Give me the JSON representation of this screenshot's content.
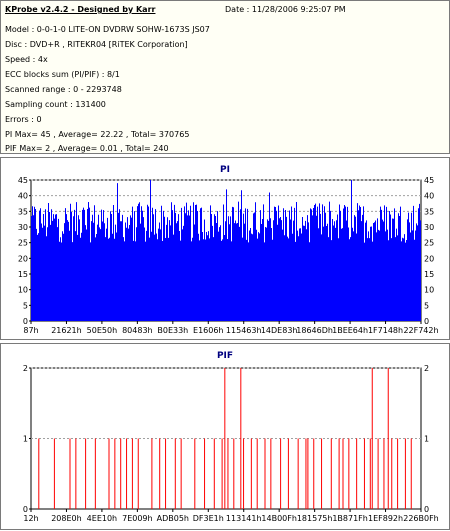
{
  "info": {
    "title": "KProbe v2.4.2 - Designed by Karr",
    "date": "Date : 11/28/2006 9:25:07 PM",
    "lines": [
      "Model : 0-0-1-0 LITE-ON DVDRW SOHW-1673S JS07",
      "Disc : DVD+R , RITEKR04 [RiTEK Corporation]",
      "Speed : 4x",
      "ECC blocks sum (PI/PIF) : 8/1",
      "Scanned range : 0 - 2293748",
      "Sampling count : 131400",
      "Errors : 0",
      "PI Max= 45 , Average= 22.22 , Total= 370765",
      "PIF Max= 2 , Average= 0.01 , Total= 240"
    ]
  },
  "colors": {
    "pi_bar": "#0000ff",
    "pif_bar": "#ff0000",
    "title_text": "#000080",
    "grid": "#a0a0a0"
  },
  "chart_data": [
    {
      "type": "bar",
      "title": "PI",
      "ylim": [
        0,
        45
      ],
      "yticks": [
        0,
        5,
        10,
        15,
        20,
        25,
        30,
        35,
        40,
        45
      ],
      "dashed_gridlines": [
        35,
        40,
        45
      ],
      "xtick_labels": [
        "87h",
        "21621h",
        "50E50h",
        "80483h",
        "B0E33h",
        "E1606h",
        "115463h",
        "14DE83h",
        "18646Dh",
        "1BEE64h",
        "1F7148h",
        "22F742h"
      ],
      "max": 45,
      "average": 22.22,
      "typical_range": [
        25,
        38
      ],
      "spikes": [
        {
          "x_fraction": 0.22,
          "value": 44
        },
        {
          "x_fraction": 0.305,
          "value": 45
        },
        {
          "x_fraction": 0.5,
          "value": 42
        },
        {
          "x_fraction": 0.61,
          "value": 41
        },
        {
          "x_fraction": 0.82,
          "value": 45
        }
      ]
    },
    {
      "type": "bar",
      "title": "PIF",
      "ylim": [
        0,
        2
      ],
      "yticks": [
        0,
        1,
        2
      ],
      "dashed_gridlines": [
        1,
        2
      ],
      "xtick_labels": [
        "12h",
        "208E0h",
        "4EE10h",
        "7E009h",
        "ADB05h",
        "DF3E1h",
        "113141h",
        "14B00Fh",
        "181575h",
        "1B871Fh",
        "1EF892h",
        "226B0Fh"
      ],
      "max": 2,
      "average": 0.01,
      "ones_x_fraction": [
        0.02,
        0.06,
        0.1,
        0.115,
        0.14,
        0.165,
        0.2,
        0.215,
        0.23,
        0.245,
        0.26,
        0.275,
        0.31,
        0.33,
        0.345,
        0.37,
        0.385,
        0.42,
        0.445,
        0.47,
        0.49,
        0.505,
        0.52,
        0.545,
        0.565,
        0.58,
        0.6,
        0.615,
        0.64,
        0.66,
        0.685,
        0.705,
        0.71,
        0.725,
        0.745,
        0.77,
        0.79,
        0.8,
        0.815,
        0.835,
        0.855,
        0.87,
        0.89,
        0.905,
        0.925,
        0.94,
        0.96,
        0.975
      ],
      "twos_x_fraction": [
        0.497,
        0.538,
        0.875,
        0.916
      ]
    }
  ]
}
